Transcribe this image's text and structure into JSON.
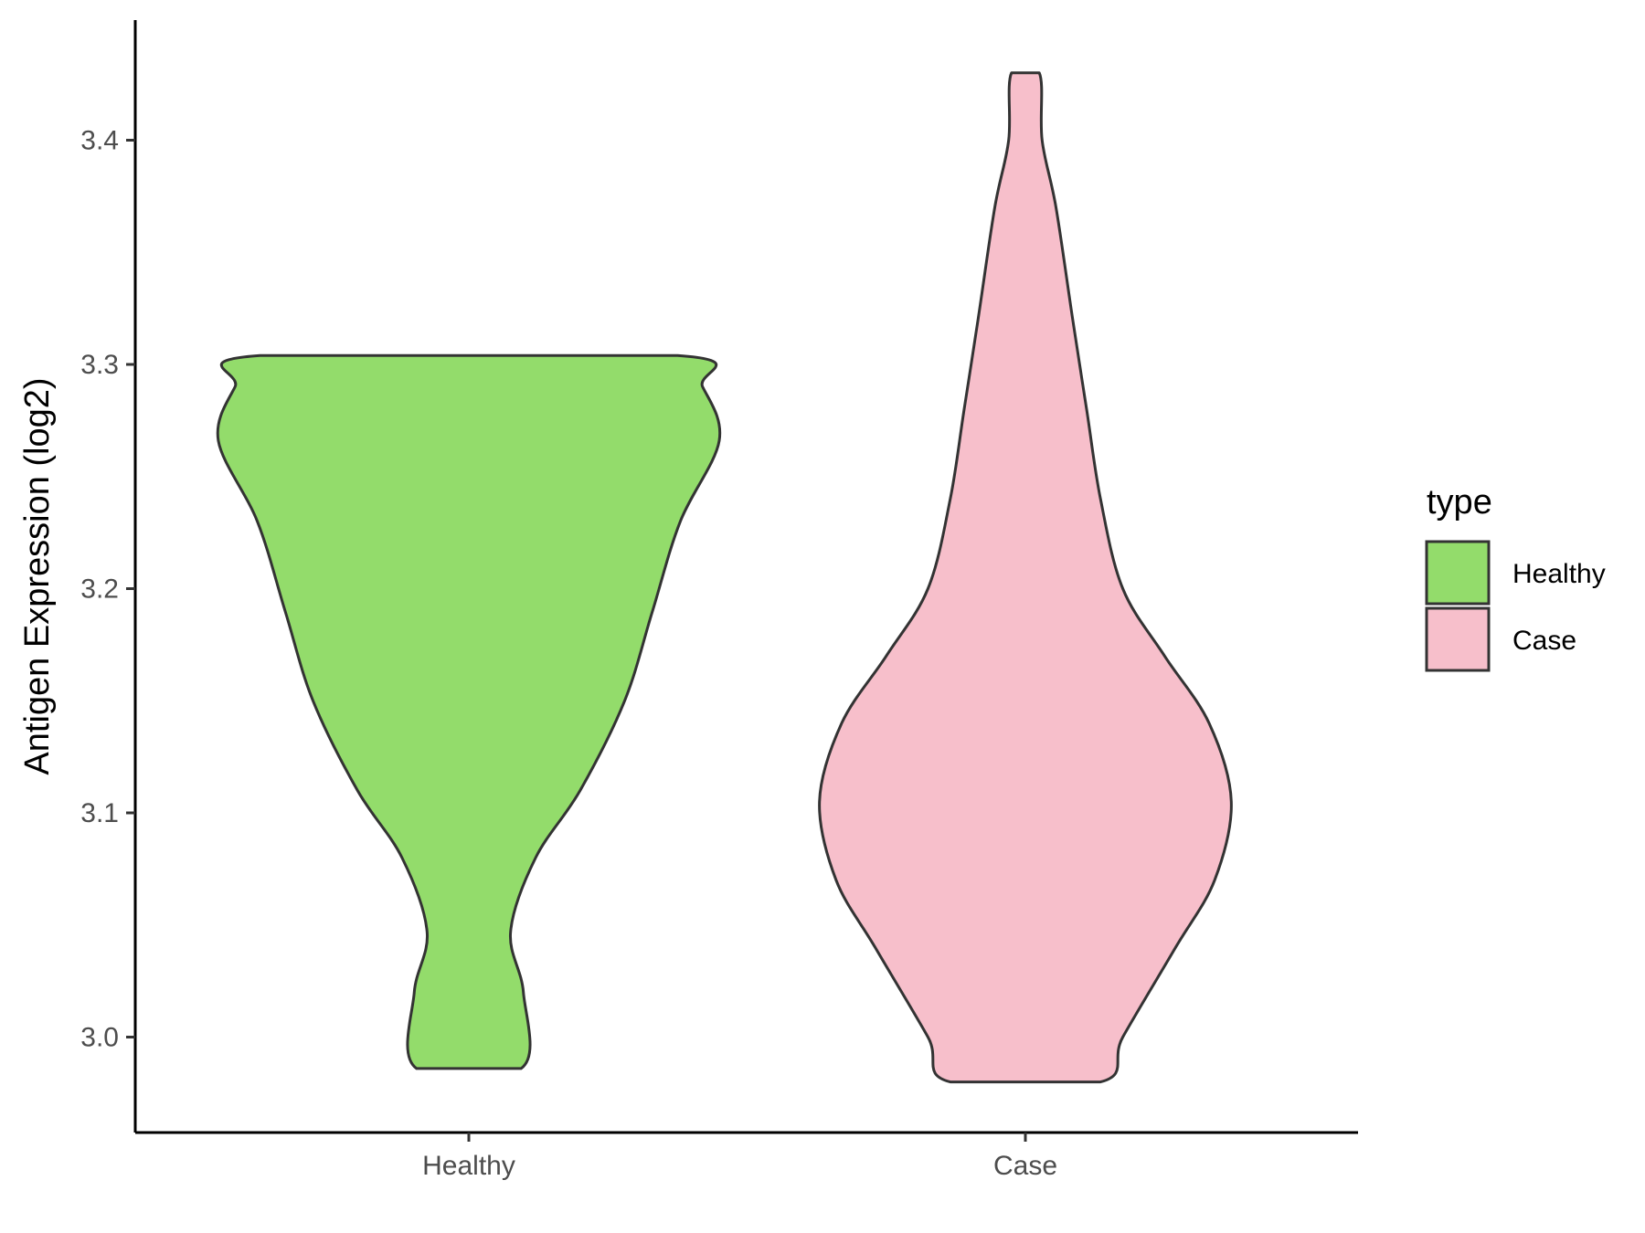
{
  "chart_data": {
    "type": "violin",
    "title": "",
    "xlabel": "",
    "ylabel": "Antigen Expression (log2)",
    "ylim": [
      2.96,
      3.455
    ],
    "yticks": [
      "3.0",
      "3.1",
      "3.2",
      "3.3",
      "3.4"
    ],
    "ytick_values": [
      3.0,
      3.1,
      3.2,
      3.3,
      3.4
    ],
    "categories": [
      "Healthy",
      "Case"
    ],
    "grid": false,
    "legend": {
      "title": "type",
      "placement": "right",
      "entries": [
        {
          "label": "Healthy",
          "color": "#93DC6B"
        },
        {
          "label": "Case",
          "color": "#F7BFCB"
        }
      ]
    },
    "series": [
      {
        "category": "Healthy",
        "color": "#93DC6B",
        "min": 2.986,
        "max": 3.304,
        "density_profile": [
          {
            "y": 2.986,
            "half_width": 0.094
          },
          {
            "y": 3.02,
            "half_width": 0.098
          },
          {
            "y": 3.047,
            "half_width": 0.075
          },
          {
            "y": 3.08,
            "half_width": 0.12
          },
          {
            "y": 3.11,
            "half_width": 0.2
          },
          {
            "y": 3.15,
            "half_width": 0.28
          },
          {
            "y": 3.19,
            "half_width": 0.33
          },
          {
            "y": 3.23,
            "half_width": 0.38
          },
          {
            "y": 3.266,
            "half_width": 0.45
          },
          {
            "y": 3.29,
            "half_width": 0.42
          },
          {
            "y": 3.304,
            "half_width": 0.375
          }
        ]
      },
      {
        "category": "Case",
        "color": "#F7BFCB",
        "min": 2.98,
        "max": 3.43,
        "density_profile": [
          {
            "y": 2.98,
            "half_width": 0.135
          },
          {
            "y": 3.0,
            "half_width": 0.175
          },
          {
            "y": 3.04,
            "half_width": 0.27
          },
          {
            "y": 3.07,
            "half_width": 0.34
          },
          {
            "y": 3.105,
            "half_width": 0.37
          },
          {
            "y": 3.14,
            "half_width": 0.33
          },
          {
            "y": 3.17,
            "half_width": 0.25
          },
          {
            "y": 3.2,
            "half_width": 0.175
          },
          {
            "y": 3.24,
            "half_width": 0.135
          },
          {
            "y": 3.28,
            "half_width": 0.11
          },
          {
            "y": 3.32,
            "half_width": 0.085
          },
          {
            "y": 3.37,
            "half_width": 0.055
          },
          {
            "y": 3.4,
            "half_width": 0.03
          },
          {
            "y": 3.43,
            "half_width": 0.025
          }
        ]
      }
    ]
  }
}
